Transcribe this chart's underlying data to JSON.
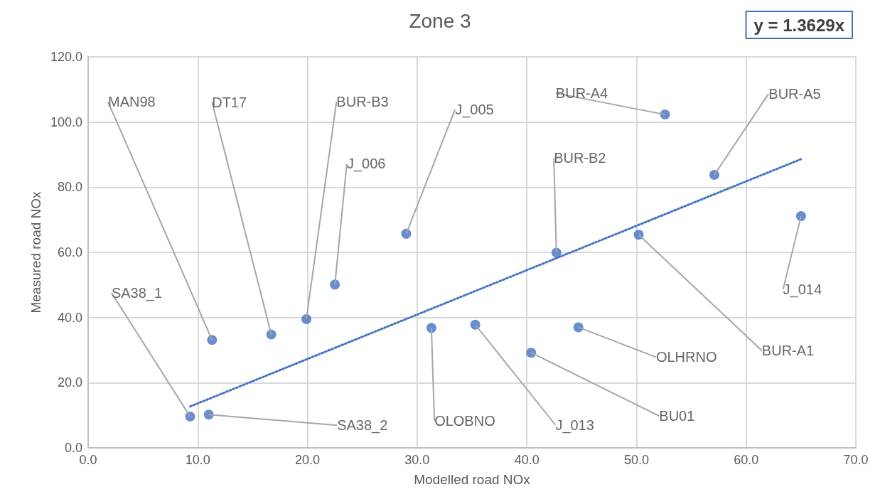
{
  "chart_data": {
    "type": "scatter",
    "title": "Zone 3",
    "xlabel": "Modelled road NOx",
    "ylabel": "Measured road NOx",
    "series": [
      {
        "color": "#4472c4",
        "marker": "circle",
        "x": [
          9.3,
          11.0,
          11.3,
          16.7,
          19.9,
          22.5,
          29.0,
          31.3,
          35.3,
          40.4,
          42.7,
          44.7,
          50.2,
          52.6,
          57.1,
          65.0
        ],
        "values": [
          9.6,
          10.2,
          33.1,
          34.8,
          39.5,
          50.1,
          65.7,
          36.8,
          37.8,
          29.2,
          59.9,
          37.0,
          65.4,
          102.3,
          83.8,
          71.1
        ]
      },
      {
        "type": "line",
        "color": "#4472c4",
        "marker": "none",
        "line_style": "dotted",
        "x": [
          9.3,
          65.0
        ],
        "values": [
          12.7,
          88.6
        ]
      }
    ],
    "annotations": [
      {
        "text": "SA38_1",
        "x": 9.3,
        "y": 9.6
      },
      {
        "text": "SA38_2",
        "x": 11.0,
        "y": 10.2
      },
      {
        "text": "MAN98",
        "x": 11.3,
        "y": 33.1
      },
      {
        "text": "DT17",
        "x": 16.7,
        "y": 34.8
      },
      {
        "text": "BUR-B3",
        "x": 19.9,
        "y": 39.5
      },
      {
        "text": "J_006",
        "x": 22.5,
        "y": 50.1
      },
      {
        "text": "J_005",
        "x": 29.0,
        "y": 65.7
      },
      {
        "text": "OLOBNO",
        "x": 31.3,
        "y": 36.8
      },
      {
        "text": "J_013",
        "x": 35.3,
        "y": 37.8
      },
      {
        "text": "BU01",
        "x": 40.4,
        "y": 29.2
      },
      {
        "text": "BUR-B2",
        "x": 42.7,
        "y": 59.9
      },
      {
        "text": "OLHRNO",
        "x": 44.7,
        "y": 37.0
      },
      {
        "text": "BUR-A1",
        "x": 50.2,
        "y": 65.4
      },
      {
        "text": "BUR-A4",
        "x": 52.6,
        "y": 102.3
      },
      {
        "text": "BUR-A5",
        "x": 57.1,
        "y": 83.8
      },
      {
        "text": "J_014",
        "x": 65.0,
        "y": 71.1
      },
      "y = 1.3629x"
    ],
    "xlim": [
      0,
      70
    ],
    "xticks": [
      {
        "value": 0,
        "label": "0.0"
      },
      {
        "value": 10,
        "label": "10.0"
      },
      {
        "value": 20,
        "label": "20.0"
      },
      {
        "value": 30,
        "label": "30.0"
      },
      {
        "value": 40,
        "label": "40.0"
      },
      {
        "value": 50,
        "label": "50.0"
      },
      {
        "value": 60,
        "label": "60.0"
      },
      {
        "value": 70,
        "label": "70.0"
      }
    ],
    "ylim": [
      0,
      120
    ],
    "yticks": [
      {
        "value": 0,
        "label": "0.0"
      },
      {
        "value": 20,
        "label": "20.0"
      },
      {
        "value": 40,
        "label": "40.0"
      },
      {
        "value": 60,
        "label": "60.0"
      },
      {
        "value": 80,
        "label": "80.0"
      },
      {
        "value": 100,
        "label": "100.0"
      },
      {
        "value": 120,
        "label": "120.0"
      }
    ],
    "grid": true
  }
}
